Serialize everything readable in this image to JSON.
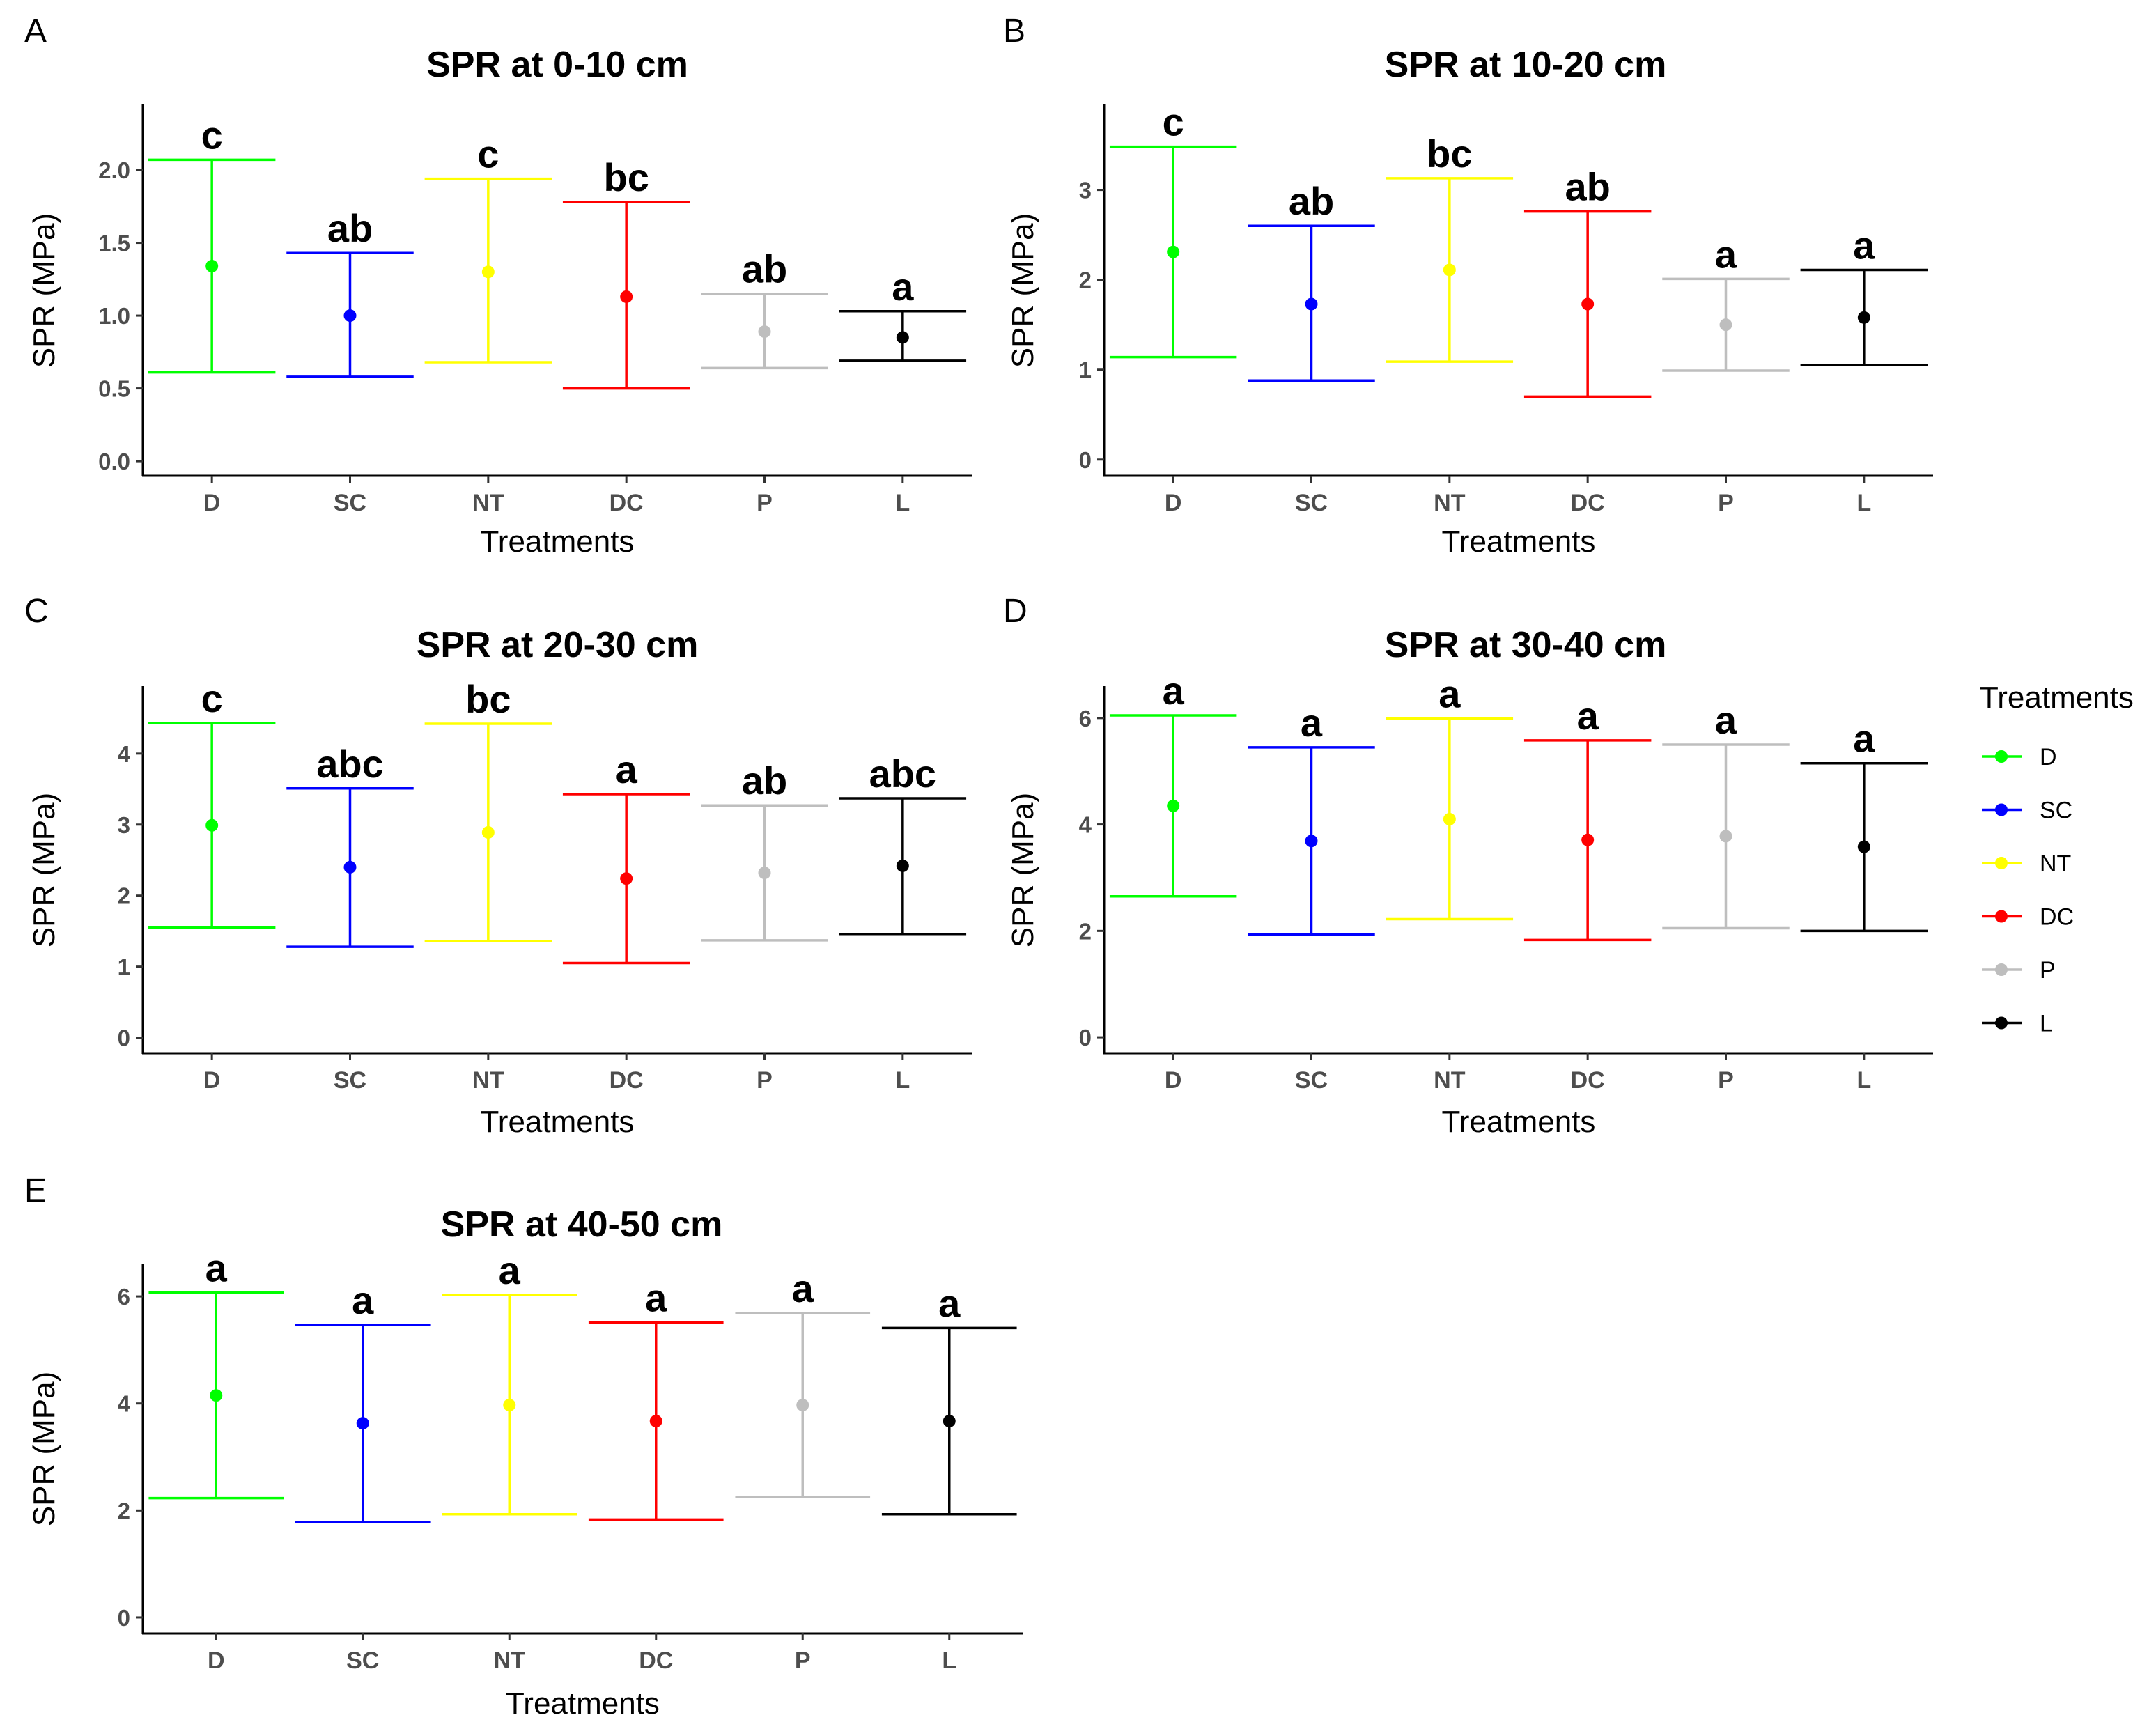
{
  "figure": {
    "x_axis_title": "Treatments",
    "y_axis_title": "SPR (MPa)"
  },
  "legend": {
    "title": "Treatments",
    "items": [
      {
        "label": "D",
        "color": "#00ff00"
      },
      {
        "label": "SC",
        "color": "#0000ff"
      },
      {
        "label": "NT",
        "color": "#ffff00"
      },
      {
        "label": "DC",
        "color": "#ff0000"
      },
      {
        "label": "P",
        "color": "#bebebe"
      },
      {
        "label": "L",
        "color": "#000000"
      }
    ]
  },
  "chart_data": [
    {
      "panel": "A",
      "type": "scatter",
      "title": "SPR at 0-10 cm",
      "xlabel": "Treatments",
      "ylabel": "SPR (MPa)",
      "categories": [
        "D",
        "SC",
        "NT",
        "DC",
        "P",
        "L"
      ],
      "colors": [
        "#00ff00",
        "#0000ff",
        "#ffff00",
        "#ff0000",
        "#bebebe",
        "#000000"
      ],
      "means": [
        1.34,
        1.0,
        1.3,
        1.13,
        0.89,
        0.85
      ],
      "lower": [
        0.61,
        0.58,
        0.68,
        0.5,
        0.64,
        0.69
      ],
      "upper": [
        2.07,
        1.43,
        1.94,
        1.78,
        1.15,
        1.03
      ],
      "letters": [
        "c",
        "ab",
        "c",
        "bc",
        "ab",
        "a"
      ],
      "yticks": [
        "0.0",
        "0.5",
        "1.0",
        "1.5",
        "2.0"
      ],
      "ylim": [
        -0.1,
        2.45
      ]
    },
    {
      "panel": "B",
      "type": "scatter",
      "title": "SPR at 10-20 cm",
      "xlabel": "Treatments",
      "ylabel": "SPR (MPa)",
      "categories": [
        "D",
        "SC",
        "NT",
        "DC",
        "P",
        "L"
      ],
      "colors": [
        "#00ff00",
        "#0000ff",
        "#ffff00",
        "#ff0000",
        "#bebebe",
        "#000000"
      ],
      "means": [
        2.31,
        1.73,
        2.11,
        1.73,
        1.5,
        1.58
      ],
      "lower": [
        1.14,
        0.88,
        1.09,
        0.7,
        0.99,
        1.05
      ],
      "upper": [
        3.48,
        2.6,
        3.13,
        2.76,
        2.01,
        2.11
      ],
      "letters": [
        "c",
        "ab",
        "bc",
        "ab",
        "a",
        "a"
      ],
      "yticks": [
        "0",
        "1",
        "2",
        "3"
      ],
      "ylim": [
        -0.18,
        3.95
      ]
    },
    {
      "panel": "C",
      "type": "scatter",
      "title": "SPR at 20-30 cm",
      "xlabel": "Treatments",
      "ylabel": "SPR (MPa)",
      "categories": [
        "D",
        "SC",
        "NT",
        "DC",
        "P",
        "L"
      ],
      "colors": [
        "#00ff00",
        "#0000ff",
        "#ffff00",
        "#ff0000",
        "#bebebe",
        "#000000"
      ],
      "means": [
        2.99,
        2.4,
        2.89,
        2.24,
        2.32,
        2.42
      ],
      "lower": [
        1.55,
        1.28,
        1.36,
        1.05,
        1.37,
        1.46
      ],
      "upper": [
        4.43,
        3.51,
        4.42,
        3.43,
        3.27,
        3.37
      ],
      "letters": [
        "c",
        "abc",
        "bc",
        "a",
        "ab",
        "abc"
      ],
      "yticks": [
        "0",
        "1",
        "2",
        "3",
        "4"
      ],
      "ylim": [
        -0.22,
        4.95
      ]
    },
    {
      "panel": "D",
      "type": "scatter",
      "title": "SPR at 30-40 cm",
      "xlabel": "Treatments",
      "ylabel": "SPR (MPa)",
      "categories": [
        "D",
        "SC",
        "NT",
        "DC",
        "P",
        "L"
      ],
      "colors": [
        "#00ff00",
        "#0000ff",
        "#ffff00",
        "#ff0000",
        "#bebebe",
        "#000000"
      ],
      "means": [
        4.35,
        3.69,
        4.1,
        3.71,
        3.78,
        3.58
      ],
      "lower": [
        2.65,
        1.93,
        2.22,
        1.83,
        2.05,
        2.0
      ],
      "upper": [
        6.05,
        5.45,
        5.99,
        5.58,
        5.5,
        5.15
      ],
      "letters": [
        "a",
        "a",
        "a",
        "a",
        "a",
        "a"
      ],
      "yticks": [
        "0",
        "2",
        "4",
        "6"
      ],
      "ylim": [
        -0.3,
        6.6
      ]
    },
    {
      "panel": "E",
      "type": "scatter",
      "title": "SPR at 40-50 cm",
      "xlabel": "Treatments",
      "ylabel": "SPR (MPa)",
      "categories": [
        "D",
        "SC",
        "NT",
        "DC",
        "P",
        "L"
      ],
      "colors": [
        "#00ff00",
        "#0000ff",
        "#ffff00",
        "#ff0000",
        "#bebebe",
        "#000000"
      ],
      "means": [
        4.15,
        3.63,
        3.97,
        3.67,
        3.97,
        3.67
      ],
      "lower": [
        2.23,
        1.78,
        1.93,
        1.83,
        2.25,
        1.93
      ],
      "upper": [
        6.07,
        5.47,
        6.03,
        5.51,
        5.69,
        5.41
      ],
      "letters": [
        "a",
        "a",
        "a",
        "a",
        "a",
        "a"
      ],
      "yticks": [
        "0",
        "2",
        "4",
        "6"
      ],
      "ylim": [
        -0.3,
        6.6
      ]
    }
  ]
}
